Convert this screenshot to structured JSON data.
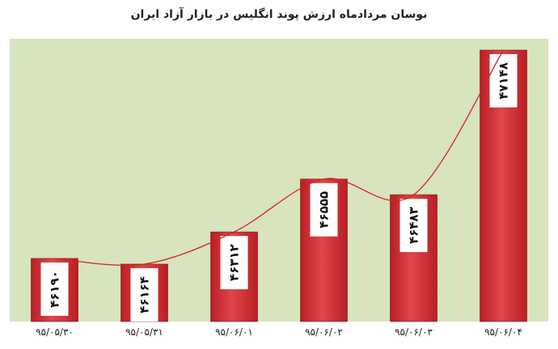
{
  "chart_data": {
    "type": "bar",
    "title": "نوسان مردادماه ارزش پوند انگلیس در بازار آزاد ایران",
    "xlabel": "",
    "ylabel": "",
    "categories": [
      "۹۵/۰۵/۳۰",
      "۹۵/۰۵/۳۱",
      "۹۵/۰۶/۰۱",
      "۹۵/۰۶/۰۲",
      "۹۵/۰۶/۰۳",
      "۹۵/۰۶/۰۴"
    ],
    "values": [
      46190,
      46164,
      46312,
      46555,
      46483,
      47148
    ],
    "data_labels": [
      "۴۶۱۹۰",
      "۴۶۱۶۴",
      "۴۶۳۱۲",
      "۴۶۵۵۵",
      "۴۶۴۸۳",
      "۴۷۱۴۸"
    ],
    "ylim": [
      45900,
      47200
    ],
    "trendline": true,
    "grid": false,
    "legend": "none",
    "colors": {
      "plot_background": "#d7e4bd",
      "bar": "#b81e23",
      "bar_highlight": "#e0464a",
      "trendline": "#d42020",
      "label_box": "#ffffff"
    }
  }
}
